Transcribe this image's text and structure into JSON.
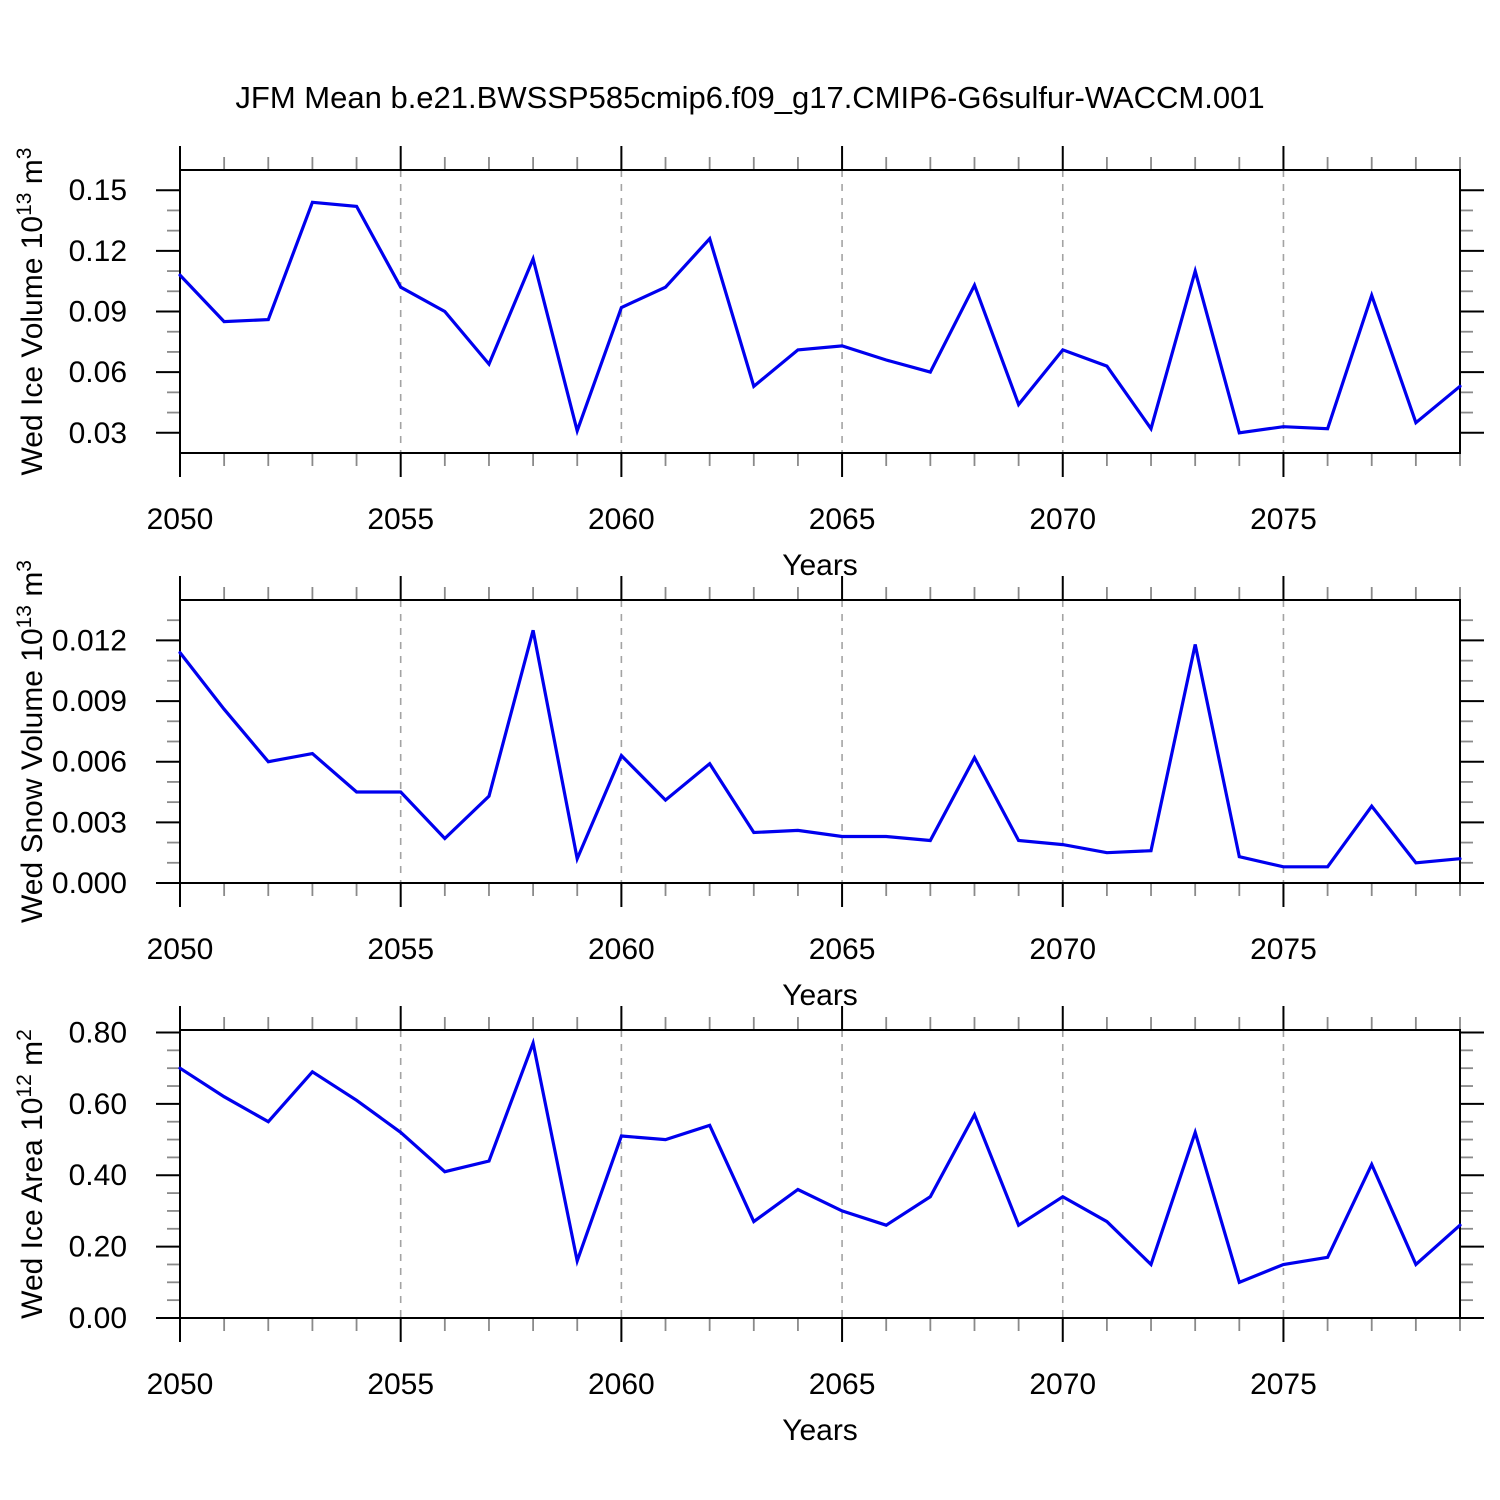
{
  "title": "JFM Mean b.e21.BWSSP585cmip6.f09_g17.CMIP6-G6sulfur-WACCM.001",
  "line_color": "#0000ee",
  "grid_color": "#a3a3a3",
  "minor_tick_color": "#8a8a8a",
  "x_axis": {
    "label": "Years",
    "min": 2050,
    "max": 2079,
    "major_ticks": [
      2050,
      2055,
      2060,
      2065,
      2070,
      2075
    ],
    "major_tick_labels": [
      "2050",
      "2055",
      "2060",
      "2065",
      "2070",
      "2075"
    ],
    "minor_step": 1,
    "grid_years": [
      2055,
      2060,
      2065,
      2070,
      2075
    ]
  },
  "chart_data": [
    {
      "id": "wed-ice-volume",
      "type": "line",
      "ylabel": {
        "prefix": "Wed Ice Volume 10",
        "sup1": "13",
        "mid": " m",
        "sup2": "3"
      },
      "ylabel_plain": "Wed Ice Volume 10^13 m^3",
      "xlabel": "Years",
      "ylim": [
        0.02,
        0.16
      ],
      "ytick_values": [
        0.03,
        0.06,
        0.09,
        0.12,
        0.15
      ],
      "ytick_labels": [
        "0.03",
        "0.06",
        "0.09",
        "0.12",
        "0.15"
      ],
      "y_minor_step": 0.01,
      "x": [
        2050,
        2051,
        2052,
        2053,
        2054,
        2055,
        2056,
        2057,
        2058,
        2059,
        2060,
        2061,
        2062,
        2063,
        2064,
        2065,
        2066,
        2067,
        2068,
        2069,
        2070,
        2071,
        2072,
        2073,
        2074,
        2075,
        2076,
        2077,
        2078,
        2079
      ],
      "values": [
        0.108,
        0.085,
        0.086,
        0.144,
        0.142,
        0.102,
        0.09,
        0.064,
        0.116,
        0.031,
        0.092,
        0.102,
        0.126,
        0.053,
        0.071,
        0.073,
        0.066,
        0.06,
        0.103,
        0.044,
        0.071,
        0.063,
        0.032,
        0.11,
        0.03,
        0.033,
        0.032,
        0.098,
        0.035,
        0.053
      ]
    },
    {
      "id": "wed-snow-volume",
      "type": "line",
      "ylabel": {
        "prefix": "Wed Snow Volume 10",
        "sup1": "13",
        "mid": " m",
        "sup2": "3"
      },
      "ylabel_plain": "Wed Snow Volume 10^13 m^3",
      "xlabel": "Years",
      "ylim": [
        0.0,
        0.014
      ],
      "ytick_values": [
        0.0,
        0.003,
        0.006,
        0.009,
        0.012
      ],
      "ytick_labels": [
        "0.000",
        "0.003",
        "0.006",
        "0.009",
        "0.012"
      ],
      "y_minor_step": 0.001,
      "x": [
        2050,
        2051,
        2052,
        2053,
        2054,
        2055,
        2056,
        2057,
        2058,
        2059,
        2060,
        2061,
        2062,
        2063,
        2064,
        2065,
        2066,
        2067,
        2068,
        2069,
        2070,
        2071,
        2072,
        2073,
        2074,
        2075,
        2076,
        2077,
        2078,
        2079
      ],
      "values": [
        0.0114,
        0.0086,
        0.006,
        0.0064,
        0.0045,
        0.0045,
        0.0022,
        0.0043,
        0.0125,
        0.0012,
        0.0063,
        0.0041,
        0.0059,
        0.0025,
        0.0026,
        0.0023,
        0.0023,
        0.0021,
        0.0062,
        0.0021,
        0.0019,
        0.0015,
        0.0016,
        0.0118,
        0.0013,
        0.0008,
        0.0008,
        0.0038,
        0.001,
        0.0012
      ]
    },
    {
      "id": "wed-ice-area",
      "type": "line",
      "ylabel": {
        "prefix": "Wed Ice Area 10",
        "sup1": "12",
        "mid": " m",
        "sup2": "2"
      },
      "ylabel_plain": "Wed Ice Area 10^12 m^2",
      "xlabel": "Years",
      "ylim": [
        0.0,
        0.807
      ],
      "ytick_values": [
        0.0,
        0.2,
        0.4,
        0.6,
        0.8
      ],
      "ytick_labels": [
        "0.00",
        "0.20",
        "0.40",
        "0.60",
        "0.80"
      ],
      "y_minor_step": 0.05,
      "x": [
        2050,
        2051,
        2052,
        2053,
        2054,
        2055,
        2056,
        2057,
        2058,
        2059,
        2060,
        2061,
        2062,
        2063,
        2064,
        2065,
        2066,
        2067,
        2068,
        2069,
        2070,
        2071,
        2072,
        2073,
        2074,
        2075,
        2076,
        2077,
        2078,
        2079
      ],
      "values": [
        0.7,
        0.62,
        0.55,
        0.69,
        0.61,
        0.52,
        0.41,
        0.44,
        0.77,
        0.16,
        0.51,
        0.5,
        0.54,
        0.27,
        0.36,
        0.3,
        0.26,
        0.34,
        0.57,
        0.26,
        0.34,
        0.27,
        0.15,
        0.52,
        0.1,
        0.15,
        0.17,
        0.43,
        0.15,
        0.26
      ]
    }
  ]
}
